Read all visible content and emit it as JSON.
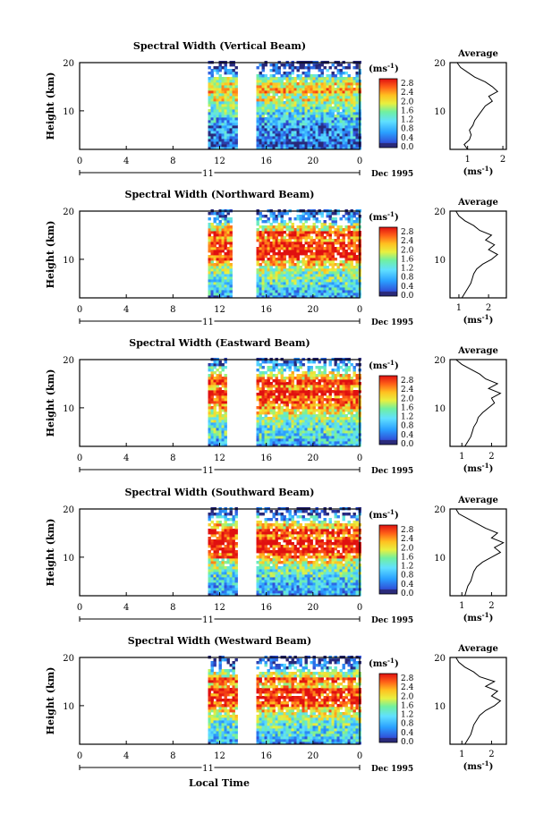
{
  "xlabel": "Local Time",
  "chart_data": [
    {
      "type": "heatmap",
      "title": "Spectral Width (Vertical Beam)",
      "ylabel": "Height (km)",
      "y_ticks": [
        "20",
        "10"
      ],
      "x_ticks": [
        "0",
        "4",
        "8",
        "12",
        "16",
        "20",
        "0"
      ],
      "date_day": "11",
      "date_label": "Dec 1995",
      "xlim": [
        0,
        24
      ],
      "ylim": [
        2,
        20
      ],
      "data_start_hour": 11,
      "gap_hours": [
        13.5,
        15
      ],
      "colorbar": {
        "unit_base": "(ms",
        "unit_exp": "-1",
        "unit_end": ")",
        "labels": [
          "2.8",
          "2.4",
          "2.0",
          "1.6",
          "1.2",
          "0.8",
          "0.4",
          "0.0"
        ]
      },
      "average": {
        "title": "Average",
        "x_ticks": [
          "1",
          "2"
        ],
        "y_ticks": [
          "20",
          "10"
        ],
        "xlim": [
          0.5,
          2.1
        ],
        "ylim": [
          2,
          20
        ],
        "xlabel_base": "(ms",
        "xlabel_exp": "-1",
        "xlabel_end": ")",
        "profile": [
          [
            1.0,
            2
          ],
          [
            0.9,
            3
          ],
          [
            1.05,
            4
          ],
          [
            1.1,
            5
          ],
          [
            1.05,
            6
          ],
          [
            1.15,
            7
          ],
          [
            1.2,
            8
          ],
          [
            1.3,
            9
          ],
          [
            1.4,
            10
          ],
          [
            1.5,
            11
          ],
          [
            1.7,
            12
          ],
          [
            1.6,
            13
          ],
          [
            1.85,
            14
          ],
          [
            1.7,
            15
          ],
          [
            1.5,
            16
          ],
          [
            1.2,
            17
          ],
          [
            1.0,
            18
          ],
          [
            0.8,
            19
          ],
          [
            0.7,
            20
          ]
        ]
      }
    },
    {
      "type": "heatmap",
      "title": "Spectral Width (Northward Beam)",
      "ylabel": "Height (km)",
      "y_ticks": [
        "20",
        "10"
      ],
      "x_ticks": [
        "0",
        "4",
        "8",
        "12",
        "16",
        "20",
        "0"
      ],
      "date_day": "11",
      "date_label": "Dec 1995",
      "xlim": [
        0,
        24
      ],
      "ylim": [
        2,
        20
      ],
      "data_start_hour": 11,
      "gap_hours": [
        13,
        15
      ],
      "colorbar": {
        "unit_base": "(ms",
        "unit_exp": "-1",
        "unit_end": ")",
        "labels": [
          "2.8",
          "2.4",
          "2.0",
          "1.6",
          "1.2",
          "0.8",
          "0.4",
          "0.0"
        ]
      },
      "average": {
        "title": "Average",
        "x_ticks": [
          "1",
          "2"
        ],
        "y_ticks": [
          "20",
          "10"
        ],
        "xlim": [
          0.7,
          2.6
        ],
        "ylim": [
          2,
          20
        ],
        "xlabel_base": "(ms",
        "xlabel_exp": "-1",
        "xlabel_end": ")",
        "profile": [
          [
            1.1,
            2
          ],
          [
            1.2,
            3
          ],
          [
            1.3,
            4
          ],
          [
            1.4,
            5
          ],
          [
            1.45,
            6
          ],
          [
            1.5,
            7
          ],
          [
            1.6,
            8
          ],
          [
            1.8,
            9
          ],
          [
            2.1,
            10
          ],
          [
            2.3,
            11
          ],
          [
            2.0,
            12
          ],
          [
            2.2,
            13
          ],
          [
            1.9,
            14
          ],
          [
            2.1,
            15
          ],
          [
            1.7,
            16
          ],
          [
            1.5,
            17
          ],
          [
            1.2,
            18
          ],
          [
            1.0,
            19
          ],
          [
            0.9,
            20
          ]
        ]
      }
    },
    {
      "type": "heatmap",
      "title": "Spectral Width (Eastward Beam)",
      "ylabel": "Height (km)",
      "y_ticks": [
        "20",
        "10"
      ],
      "x_ticks": [
        "0",
        "4",
        "8",
        "12",
        "16",
        "20",
        "0"
      ],
      "date_day": "11",
      "date_label": "Dec 1995",
      "xlim": [
        0,
        24
      ],
      "ylim": [
        2,
        20
      ],
      "data_start_hour": 11,
      "gap_hours": [
        12.5,
        15
      ],
      "colorbar": {
        "unit_base": "(ms",
        "unit_exp": "-1",
        "unit_end": ")",
        "labels": [
          "2.8",
          "2.4",
          "2.0",
          "1.6",
          "1.2",
          "0.8",
          "0.4",
          "0.0"
        ]
      },
      "average": {
        "title": "Average",
        "x_ticks": [
          "1",
          "2"
        ],
        "y_ticks": [
          "20",
          "10"
        ],
        "xlim": [
          0.6,
          2.5
        ],
        "ylim": [
          2,
          20
        ],
        "xlabel_base": "(ms",
        "xlabel_exp": "-1",
        "xlabel_end": ")",
        "profile": [
          [
            1.1,
            2
          ],
          [
            1.2,
            3
          ],
          [
            1.3,
            4
          ],
          [
            1.35,
            5
          ],
          [
            1.4,
            6
          ],
          [
            1.5,
            7
          ],
          [
            1.55,
            8
          ],
          [
            1.7,
            9
          ],
          [
            1.9,
            10
          ],
          [
            2.1,
            11
          ],
          [
            2.0,
            12
          ],
          [
            2.3,
            13
          ],
          [
            1.9,
            14
          ],
          [
            2.2,
            15
          ],
          [
            1.8,
            16
          ],
          [
            1.6,
            17
          ],
          [
            1.3,
            18
          ],
          [
            1.0,
            19
          ],
          [
            0.8,
            20
          ]
        ]
      }
    },
    {
      "type": "heatmap",
      "title": "Spectral Width (Southward Beam)",
      "ylabel": "Height (km)",
      "y_ticks": [
        "20",
        "10"
      ],
      "x_ticks": [
        "0",
        "4",
        "8",
        "12",
        "16",
        "20",
        "0"
      ],
      "date_day": "11",
      "date_label": "Dec 1995",
      "xlim": [
        0,
        24
      ],
      "ylim": [
        2,
        20
      ],
      "data_start_hour": 11,
      "gap_hours": [
        13.5,
        15
      ],
      "colorbar": {
        "unit_base": "(ms",
        "unit_exp": "-1",
        "unit_end": ")",
        "labels": [
          "2.8",
          "2.4",
          "2.0",
          "1.6",
          "1.2",
          "0.8",
          "0.4",
          "0.0"
        ]
      },
      "average": {
        "title": "Average",
        "x_ticks": [
          "1",
          "2"
        ],
        "y_ticks": [
          "20",
          "10"
        ],
        "xlim": [
          0.6,
          2.5
        ],
        "ylim": [
          2,
          20
        ],
        "xlabel_base": "(ms",
        "xlabel_exp": "-1",
        "xlabel_end": ")",
        "profile": [
          [
            1.1,
            2
          ],
          [
            1.15,
            3
          ],
          [
            1.2,
            4
          ],
          [
            1.3,
            5
          ],
          [
            1.35,
            6
          ],
          [
            1.4,
            7
          ],
          [
            1.5,
            8
          ],
          [
            1.7,
            9
          ],
          [
            2.0,
            10
          ],
          [
            2.3,
            11
          ],
          [
            2.1,
            12
          ],
          [
            2.4,
            13
          ],
          [
            2.0,
            14
          ],
          [
            2.2,
            15
          ],
          [
            1.8,
            16
          ],
          [
            1.5,
            17
          ],
          [
            1.2,
            18
          ],
          [
            0.9,
            19
          ],
          [
            0.8,
            20
          ]
        ]
      }
    },
    {
      "type": "heatmap",
      "title": "Spectral Width (Westward Beam)",
      "ylabel": "Height (km)",
      "y_ticks": [
        "20",
        "10"
      ],
      "x_ticks": [
        "0",
        "4",
        "8",
        "12",
        "16",
        "20",
        "0"
      ],
      "date_day": "11",
      "date_label": "Dec 1995",
      "xlim": [
        0,
        24
      ],
      "ylim": [
        2,
        20
      ],
      "data_start_hour": 11,
      "gap_hours": [
        13.5,
        15
      ],
      "colorbar": {
        "unit_base": "(ms",
        "unit_exp": "-1",
        "unit_end": ")",
        "labels": [
          "2.8",
          "2.4",
          "2.0",
          "1.6",
          "1.2",
          "0.8",
          "0.4",
          "0.0"
        ]
      },
      "average": {
        "title": "Average",
        "x_ticks": [
          "1",
          "2"
        ],
        "y_ticks": [
          "20",
          "10"
        ],
        "xlim": [
          0.6,
          2.5
        ],
        "ylim": [
          2,
          20
        ],
        "xlabel_base": "(ms",
        "xlabel_exp": "-1",
        "xlabel_end": ")",
        "profile": [
          [
            1.1,
            2
          ],
          [
            1.2,
            3
          ],
          [
            1.3,
            4
          ],
          [
            1.35,
            5
          ],
          [
            1.4,
            6
          ],
          [
            1.5,
            7
          ],
          [
            1.6,
            8
          ],
          [
            1.8,
            9
          ],
          [
            2.1,
            10
          ],
          [
            2.3,
            11
          ],
          [
            2.0,
            12
          ],
          [
            2.2,
            13
          ],
          [
            1.8,
            14
          ],
          [
            2.1,
            15
          ],
          [
            1.6,
            16
          ],
          [
            1.4,
            17
          ],
          [
            1.1,
            18
          ],
          [
            0.9,
            19
          ],
          [
            0.8,
            20
          ]
        ]
      }
    }
  ]
}
